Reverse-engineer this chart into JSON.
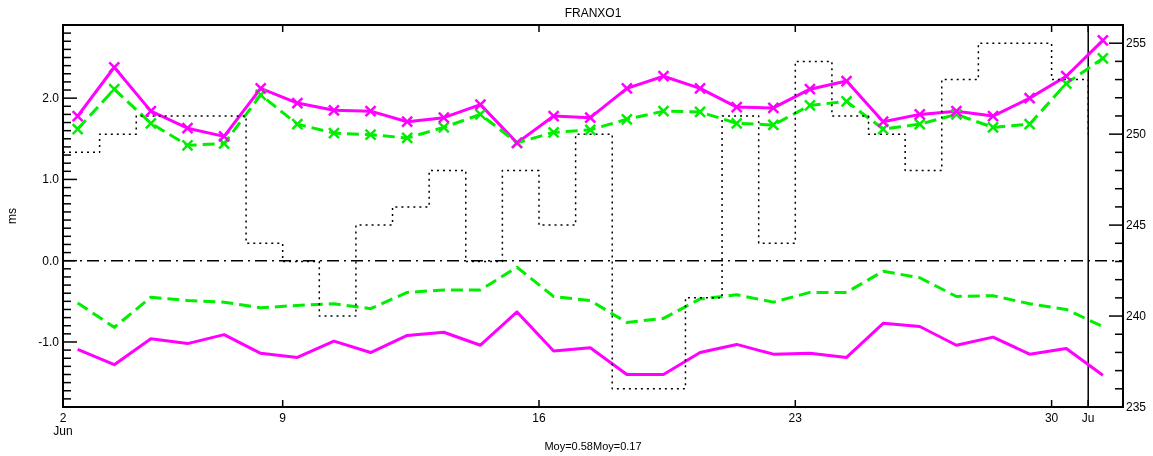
{
  "chart_data": {
    "type": "line",
    "title": "FRANXO1",
    "ylabel": "ms",
    "annotations": [
      "Moy=0.58Moy=0.17"
    ],
    "x": [
      3.4,
      4.4,
      5.4,
      6.4,
      7.4,
      8.4,
      9.4,
      10.4,
      11.4,
      12.4,
      13.4,
      14.4,
      15.4,
      16.4,
      17.4,
      18.4,
      19.4,
      20.4,
      21.4,
      22.4,
      23.4,
      24.4,
      25.4,
      26.4,
      27.4,
      28.4,
      29.4,
      30.4,
      31.4
    ],
    "xlim": [
      3,
      31.95
    ],
    "xticks": [
      {
        "value": 3,
        "label": "2\nJun"
      },
      9,
      16,
      23,
      30,
      {
        "value": 31,
        "label": "Ju"
      }
    ],
    "ylim": [
      -1.8,
      2.9
    ],
    "yticks": [
      {
        "value": -1.8,
        "label": null
      },
      {
        "value": -1.7,
        "label": null
      },
      {
        "value": -1.6,
        "label": null
      },
      {
        "value": -1.5,
        "label": null
      },
      {
        "value": -1.4,
        "label": null
      },
      {
        "value": -1.3,
        "label": null
      },
      {
        "value": -1.2,
        "label": null
      },
      {
        "value": -1.1,
        "label": null
      },
      {
        "value": -1,
        "label": "-1.0"
      },
      {
        "value": -0.9,
        "label": null
      },
      {
        "value": -0.8,
        "label": null
      },
      {
        "value": -0.7,
        "label": null
      },
      {
        "value": -0.6,
        "label": null
      },
      {
        "value": -0.5,
        "label": null
      },
      {
        "value": -0.4,
        "label": null
      },
      {
        "value": -0.3,
        "label": null
      },
      {
        "value": -0.2,
        "label": null
      },
      {
        "value": -0.1,
        "label": null
      },
      {
        "value": 0,
        "label": "0.0"
      },
      {
        "value": 0.1,
        "label": null
      },
      {
        "value": 0.2,
        "label": null
      },
      {
        "value": 0.3,
        "label": null
      },
      {
        "value": 0.4,
        "label": null
      },
      {
        "value": 0.5,
        "label": null
      },
      {
        "value": 0.6,
        "label": null
      },
      {
        "value": 0.7,
        "label": null
      },
      {
        "value": 0.8,
        "label": null
      },
      {
        "value": 0.9,
        "label": null
      },
      {
        "value": 1,
        "label": "1.0"
      },
      {
        "value": 1.1,
        "label": null
      },
      {
        "value": 1.2,
        "label": null
      },
      {
        "value": 1.3,
        "label": null
      },
      {
        "value": 1.4,
        "label": null
      },
      {
        "value": 1.5,
        "label": null
      },
      {
        "value": 1.6,
        "label": null
      },
      {
        "value": 1.7,
        "label": null
      },
      {
        "value": 1.8,
        "label": null
      },
      {
        "value": 1.9,
        "label": null
      },
      {
        "value": 2,
        "label": "2.0"
      },
      {
        "value": 2.1,
        "label": null
      },
      {
        "value": 2.2,
        "label": null
      },
      {
        "value": 2.3,
        "label": null
      },
      {
        "value": 2.4,
        "label": null
      },
      {
        "value": 2.5,
        "label": null
      },
      {
        "value": 2.6,
        "label": null
      },
      {
        "value": 2.7,
        "label": null
      },
      {
        "value": 2.8,
        "label": null
      }
    ],
    "y2lim": [
      235,
      256
    ],
    "y2ticks": [
      235,
      {
        "value": 236,
        "label": null
      },
      {
        "value": 237,
        "label": null
      },
      {
        "value": 238,
        "label": null
      },
      {
        "value": 239,
        "label": null
      },
      240,
      {
        "value": 241,
        "label": null
      },
      {
        "value": 242,
        "label": null
      },
      {
        "value": 243,
        "label": null
      },
      {
        "value": 244,
        "label": null
      },
      245,
      {
        "value": 246,
        "label": null
      },
      {
        "value": 247,
        "label": null
      },
      {
        "value": 248,
        "label": null
      },
      {
        "value": 249,
        "label": null
      },
      250,
      {
        "value": 251,
        "label": null
      },
      {
        "value": 252,
        "label": null
      },
      {
        "value": 253,
        "label": null
      },
      {
        "value": 254,
        "label": null
      },
      255
    ],
    "grid": false,
    "ref_lines": [
      {
        "axis": "y",
        "value": 0,
        "line_style": "dashdot",
        "color": "#000000"
      },
      {
        "axis": "x",
        "value": 31,
        "line_style": "solid",
        "color": "#000000"
      }
    ],
    "series": [
      {
        "color": "#ff00ff",
        "marker": "cross",
        "line_style": "solid",
        "values": [
          1.78,
          2.38,
          1.84,
          1.63,
          1.53,
          2.12,
          1.94,
          1.85,
          1.84,
          1.71,
          1.76,
          1.92,
          1.45,
          1.78,
          1.76,
          2.12,
          2.27,
          2.12,
          1.89,
          1.88,
          2.11,
          2.21,
          1.71,
          1.8,
          1.84,
          1.78,
          2.0,
          2.27,
          2.71
        ]
      },
      {
        "color": "#00ee00",
        "marker": "cross",
        "line_style": "dashed",
        "values": [
          1.62,
          2.11,
          1.69,
          1.42,
          1.44,
          2.04,
          1.68,
          1.57,
          1.55,
          1.51,
          1.64,
          1.8,
          1.45,
          1.58,
          1.61,
          1.74,
          1.84,
          1.83,
          1.69,
          1.67,
          1.91,
          1.96,
          1.62,
          1.68,
          1.8,
          1.64,
          1.68,
          2.18,
          2.49
        ]
      },
      {
        "color": "#00ee00",
        "marker": "none",
        "line_style": "dashed",
        "values": [
          -0.52,
          -0.82,
          -0.45,
          -0.49,
          -0.51,
          -0.58,
          -0.55,
          -0.53,
          -0.59,
          -0.39,
          -0.36,
          -0.36,
          -0.08,
          -0.44,
          -0.49,
          -0.76,
          -0.71,
          -0.47,
          -0.42,
          -0.51,
          -0.39,
          -0.39,
          -0.13,
          -0.21,
          -0.44,
          -0.43,
          -0.53,
          -0.6,
          -0.81
        ]
      },
      {
        "color": "#ff00ff",
        "marker": "none",
        "line_style": "solid",
        "values": [
          -1.09,
          -1.28,
          -0.96,
          -1.02,
          -0.91,
          -1.14,
          -1.19,
          -0.99,
          -1.13,
          -0.92,
          -0.88,
          -1.04,
          -0.63,
          -1.11,
          -1.07,
          -1.4,
          -1.4,
          -1.13,
          -1.03,
          -1.15,
          -1.14,
          -1.19,
          -0.77,
          -0.81,
          -1.04,
          -0.94,
          -1.15,
          -1.08,
          -1.41
        ]
      },
      {
        "type": "step",
        "axis": "y2",
        "color": "#000000",
        "marker": "none",
        "line_style": "dotted",
        "x": [
          3,
          4,
          5,
          6,
          7,
          8,
          9,
          10,
          11,
          12,
          13,
          14,
          15,
          16,
          17,
          18,
          19,
          20,
          21,
          22,
          23,
          24,
          25,
          26,
          27,
          28,
          29,
          30,
          31
        ],
        "values": [
          249,
          250,
          251,
          251,
          251,
          244,
          243,
          240,
          245,
          246,
          248,
          243,
          248,
          245,
          250,
          236,
          236,
          241,
          251,
          244,
          254,
          251,
          250,
          248,
          253,
          255,
          255,
          253,
          250
        ]
      }
    ]
  }
}
